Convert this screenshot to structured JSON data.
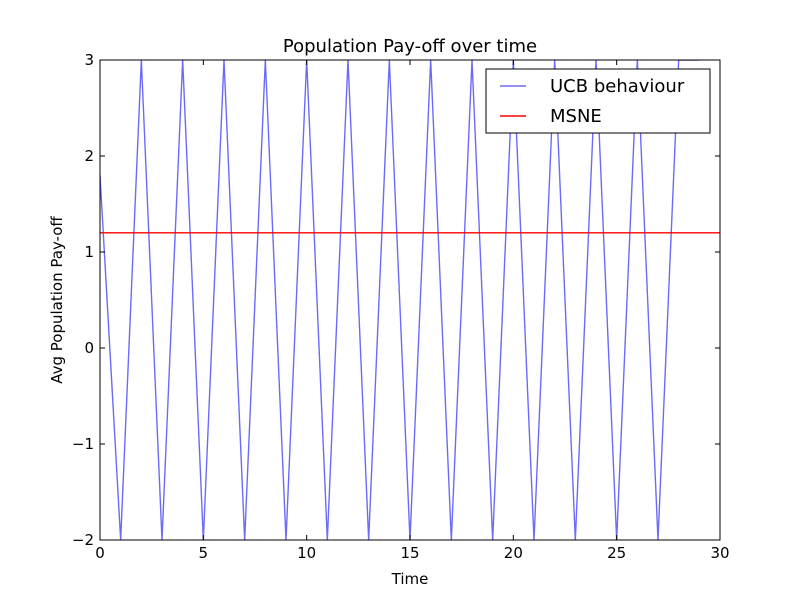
{
  "chart_data": {
    "type": "line",
    "title": "Population Pay-off over time",
    "xlabel": "Time",
    "ylabel": "Avg Population Pay-off",
    "xlim": [
      0,
      30
    ],
    "ylim": [
      -2,
      3
    ],
    "xticks": [
      0,
      5,
      10,
      15,
      20,
      25,
      30
    ],
    "yticks": [
      -2,
      -1,
      0,
      1,
      2,
      3
    ],
    "xtick_labels": [
      "0",
      "5",
      "10",
      "15",
      "20",
      "25",
      "30"
    ],
    "ytick_labels": [
      "−2",
      "−1",
      "0",
      "1",
      "2",
      "3"
    ],
    "grid": false,
    "legend_position": "top-right",
    "series": [
      {
        "name": "UCB behaviour",
        "color": "#6b6bf8",
        "x": [
          0,
          1,
          2,
          3,
          4,
          5,
          6,
          7,
          8,
          9,
          10,
          11,
          12,
          13,
          14,
          15,
          16,
          17,
          18,
          19,
          20,
          21,
          22,
          23,
          24,
          25,
          26,
          27,
          28,
          29
        ],
        "y": [
          1.8,
          -2,
          3,
          -2,
          3,
          -2,
          3,
          -2,
          3,
          -2,
          3,
          -2,
          3,
          -2,
          3,
          -2,
          3,
          -2,
          3,
          -2,
          3,
          -2,
          3,
          -2,
          3,
          -2,
          3,
          -2,
          3,
          3
        ]
      },
      {
        "name": "MSNE",
        "color": "#ff0000",
        "x": [
          0,
          30
        ],
        "y": [
          1.2,
          1.2
        ]
      }
    ]
  }
}
